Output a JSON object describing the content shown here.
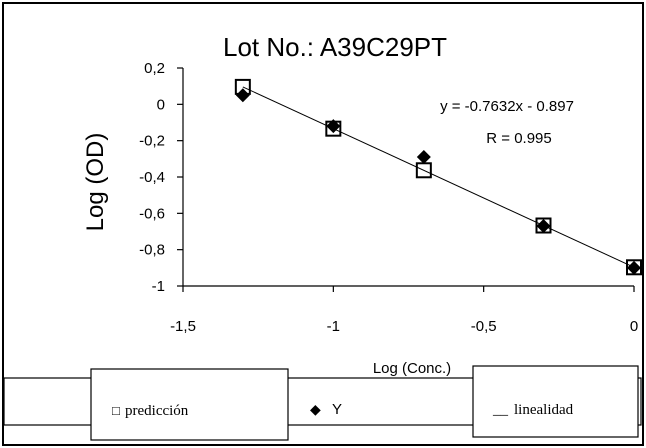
{
  "chart_data": {
    "type": "scatter",
    "title": "Lot No.: A39C29PT",
    "xlabel": "Log (Conc.)",
    "ylabel": "Log (OD)",
    "xlim": [
      -1.5,
      0
    ],
    "ylim": [
      -1,
      0.2
    ],
    "x_ticks": [
      "-1,5",
      "-1",
      "-0,5",
      "0"
    ],
    "y_ticks": [
      "0,2",
      "0",
      "-0,2",
      "-0,4",
      "-0,6",
      "-0,8",
      "-1"
    ],
    "x_tick_values": [
      -1.5,
      -1,
      -0.5,
      0
    ],
    "y_tick_values": [
      0.2,
      0,
      -0.2,
      -0.4,
      -0.6,
      -0.8,
      -1
    ],
    "grid": false,
    "legend_position": "bottom",
    "series": [
      {
        "name": "predicción",
        "marker": "square-open",
        "x": [
          -1.301,
          -1.0,
          -0.699,
          -0.301,
          0.0
        ],
        "y": [
          0.096,
          -0.134,
          -0.363,
          -0.667,
          -0.897
        ]
      },
      {
        "name": "Y",
        "marker": "diamond-filled",
        "x": [
          -1.301,
          -1.0,
          -0.699,
          -0.301,
          0.0
        ],
        "y": [
          0.05,
          -0.12,
          -0.29,
          -0.67,
          -0.9
        ]
      },
      {
        "name": "linealidad",
        "marker": "line",
        "x": [
          -1.301,
          0.0
        ],
        "y": [
          0.096,
          -0.897
        ]
      }
    ],
    "annotations": [
      "y = -0.7632x - 0.897",
      "R = 0.995"
    ],
    "legend": {
      "items": [
        {
          "symbol": "□",
          "label": "predicción"
        },
        {
          "symbol": "◆",
          "label": "Y"
        },
        {
          "symbol": "__",
          "label": "linealidad"
        }
      ]
    }
  }
}
